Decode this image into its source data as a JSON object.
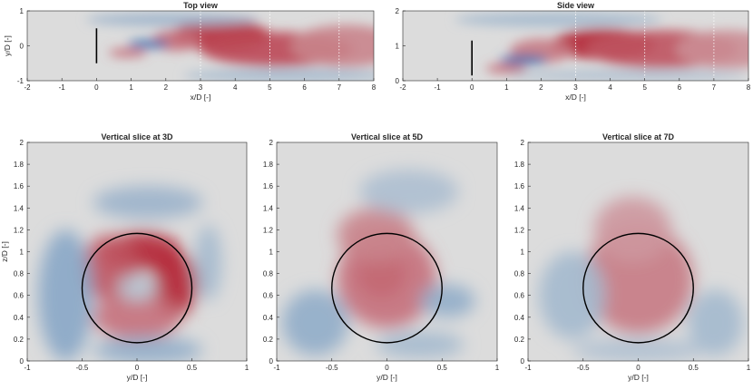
{
  "chart_data": [
    {
      "type": "heatmap",
      "title": "Top view",
      "xlabel": "x/D [-]",
      "ylabel": "y/D [-]",
      "xlim": [
        -2,
        8
      ],
      "ylim": [
        -1,
        1
      ],
      "xticks": [
        -2,
        -1,
        0,
        1,
        2,
        3,
        4,
        5,
        6,
        7,
        8
      ],
      "yticks": [
        -1,
        0,
        1
      ],
      "colors": {
        "background": "#dcdcdc",
        "positive": "#b2182b",
        "negative": "#2166ac"
      },
      "turbine_line": {
        "x": 0,
        "y": [
          -0.5,
          0.5
        ]
      },
      "dotted_lines_x": [
        3,
        5,
        7
      ],
      "blobs": [
        {
          "x": 3.6,
          "y": 0.3,
          "rx": 1.4,
          "ry": 0.45,
          "v": 0.9
        },
        {
          "x": 5.2,
          "y": -0.1,
          "rx": 2.2,
          "ry": 0.5,
          "v": 0.75
        },
        {
          "x": 2.3,
          "y": 0.15,
          "rx": 0.7,
          "ry": 0.3,
          "v": 0.55
        },
        {
          "x": 7.2,
          "y": 0.0,
          "rx": 1.6,
          "ry": 0.6,
          "v": 0.45
        },
        {
          "x": 1.5,
          "y": 0.05,
          "rx": 0.6,
          "ry": 0.12,
          "v": -0.95
        },
        {
          "x": 0.9,
          "y": -0.2,
          "rx": 0.55,
          "ry": 0.12,
          "v": 0.6
        },
        {
          "x": 2.2,
          "y": 0.75,
          "rx": 2.5,
          "ry": 0.18,
          "v": -0.35
        },
        {
          "x": 5.5,
          "y": -0.85,
          "rx": 3.0,
          "ry": 0.18,
          "v": -0.3
        }
      ]
    },
    {
      "type": "heatmap",
      "title": "Side view",
      "xlabel": "x/D [-]",
      "ylabel": "",
      "xlim": [
        -2,
        8
      ],
      "ylim": [
        0,
        2
      ],
      "xticks": [
        -2,
        -1,
        0,
        1,
        2,
        3,
        4,
        5,
        6,
        7,
        8
      ],
      "yticks": [
        0,
        1,
        2
      ],
      "colors": {
        "background": "#dcdcdc",
        "positive": "#b2182b",
        "negative": "#2166ac"
      },
      "turbine_line": {
        "x": 0,
        "y": [
          0.15,
          1.15
        ]
      },
      "dotted_lines_x": [
        3,
        5,
        7
      ],
      "blobs": [
        {
          "x": 3.8,
          "y": 1.05,
          "rx": 1.5,
          "ry": 0.45,
          "v": 0.95
        },
        {
          "x": 5.5,
          "y": 0.9,
          "rx": 2.2,
          "ry": 0.55,
          "v": 0.7
        },
        {
          "x": 2.0,
          "y": 0.85,
          "rx": 0.9,
          "ry": 0.35,
          "v": 0.5
        },
        {
          "x": 7.4,
          "y": 0.9,
          "rx": 1.5,
          "ry": 0.55,
          "v": 0.4
        },
        {
          "x": 1.5,
          "y": 0.6,
          "rx": 0.7,
          "ry": 0.13,
          "v": -0.95
        },
        {
          "x": 1.0,
          "y": 0.35,
          "rx": 0.6,
          "ry": 0.13,
          "v": 0.6
        },
        {
          "x": 2.5,
          "y": 1.75,
          "rx": 3.0,
          "ry": 0.2,
          "v": -0.3
        },
        {
          "x": 4.5,
          "y": 0.15,
          "rx": 3.5,
          "ry": 0.15,
          "v": -0.25
        }
      ]
    },
    {
      "type": "heatmap",
      "title": "Vertical slice at 3D",
      "xlabel": "y/D [-]",
      "ylabel": "z/D [-]",
      "xlim": [
        -1,
        1
      ],
      "ylim": [
        0,
        2
      ],
      "xticks": [
        -1,
        -0.5,
        0,
        0.5,
        1
      ],
      "yticks": [
        0,
        0.2,
        0.4,
        0.6,
        0.8,
        1,
        1.2,
        1.4,
        1.6,
        1.8,
        2
      ],
      "colors": {
        "background": "#dcdcdc",
        "positive": "#b2182b",
        "negative": "#2166ac"
      },
      "rotor_circle": {
        "cx": 0,
        "cy": 0.667,
        "r": 0.5
      },
      "blobs": [
        {
          "x": 0.05,
          "y": 1.0,
          "rx": 0.35,
          "ry": 0.18,
          "v": 0.95
        },
        {
          "x": 0.35,
          "y": 0.7,
          "rx": 0.2,
          "ry": 0.3,
          "v": 0.95
        },
        {
          "x": -0.25,
          "y": 0.85,
          "rx": 0.25,
          "ry": 0.3,
          "v": 0.7
        },
        {
          "x": 0.0,
          "y": 0.4,
          "rx": 0.4,
          "ry": 0.2,
          "v": 0.55
        },
        {
          "x": 0.0,
          "y": 0.67,
          "rx": 0.18,
          "ry": 0.12,
          "v": -0.2
        },
        {
          "x": -0.65,
          "y": 0.6,
          "rx": 0.25,
          "ry": 0.6,
          "v": -0.45
        },
        {
          "x": 0.1,
          "y": 1.45,
          "rx": 0.5,
          "ry": 0.15,
          "v": -0.35
        },
        {
          "x": 0.1,
          "y": 0.1,
          "rx": 0.5,
          "ry": 0.12,
          "v": -0.4
        },
        {
          "x": 0.65,
          "y": 0.9,
          "rx": 0.12,
          "ry": 0.35,
          "v": -0.3
        }
      ]
    },
    {
      "type": "heatmap",
      "title": "Vertical slice at 5D",
      "xlabel": "y/D [-]",
      "ylabel": "",
      "xlim": [
        -1,
        1
      ],
      "ylim": [
        0,
        2
      ],
      "xticks": [
        -1,
        -0.5,
        0,
        0.5,
        1
      ],
      "yticks": [
        0,
        0.2,
        0.4,
        0.6,
        0.8,
        1,
        1.2,
        1.4,
        1.6,
        1.8,
        2
      ],
      "colors": {
        "background": "#dcdcdc",
        "positive": "#b2182b",
        "negative": "#2166ac"
      },
      "rotor_circle": {
        "cx": 0,
        "cy": 0.667,
        "r": 0.5
      },
      "blobs": [
        {
          "x": -0.05,
          "y": 0.8,
          "rx": 0.22,
          "ry": 0.22,
          "v": 0.95
        },
        {
          "x": 0.0,
          "y": 0.75,
          "rx": 0.45,
          "ry": 0.45,
          "v": 0.55
        },
        {
          "x": -0.1,
          "y": 1.15,
          "rx": 0.35,
          "ry": 0.25,
          "v": 0.45
        },
        {
          "x": 0.55,
          "y": 0.55,
          "rx": 0.25,
          "ry": 0.15,
          "v": -0.4
        },
        {
          "x": -0.65,
          "y": 0.35,
          "rx": 0.3,
          "ry": 0.3,
          "v": -0.4
        },
        {
          "x": 0.3,
          "y": 0.15,
          "rx": 0.4,
          "ry": 0.12,
          "v": -0.3
        },
        {
          "x": 0.2,
          "y": 1.55,
          "rx": 0.45,
          "ry": 0.2,
          "v": -0.25
        }
      ]
    },
    {
      "type": "heatmap",
      "title": "Vertical slice at 7D",
      "xlabel": "y/D [-]",
      "ylabel": "",
      "xlim": [
        -1,
        1
      ],
      "ylim": [
        0,
        2
      ],
      "xticks": [
        -1,
        -0.5,
        0,
        0.5,
        1
      ],
      "yticks": [
        0,
        0.2,
        0.4,
        0.6,
        0.8,
        1,
        1.2,
        1.4,
        1.6,
        1.8,
        2
      ],
      "colors": {
        "background": "#dcdcdc",
        "positive": "#b2182b",
        "negative": "#2166ac"
      },
      "rotor_circle": {
        "cx": 0,
        "cy": 0.667,
        "r": 0.5
      },
      "blobs": [
        {
          "x": 0.0,
          "y": 0.75,
          "rx": 0.5,
          "ry": 0.5,
          "v": 0.5
        },
        {
          "x": -0.05,
          "y": 1.2,
          "rx": 0.35,
          "ry": 0.3,
          "v": 0.35
        },
        {
          "x": -0.6,
          "y": 0.6,
          "rx": 0.3,
          "ry": 0.4,
          "v": -0.3
        },
        {
          "x": 0.7,
          "y": 0.35,
          "rx": 0.25,
          "ry": 0.3,
          "v": -0.3
        },
        {
          "x": 0.0,
          "y": 0.1,
          "rx": 0.6,
          "ry": 0.1,
          "v": -0.25
        }
      ]
    }
  ]
}
